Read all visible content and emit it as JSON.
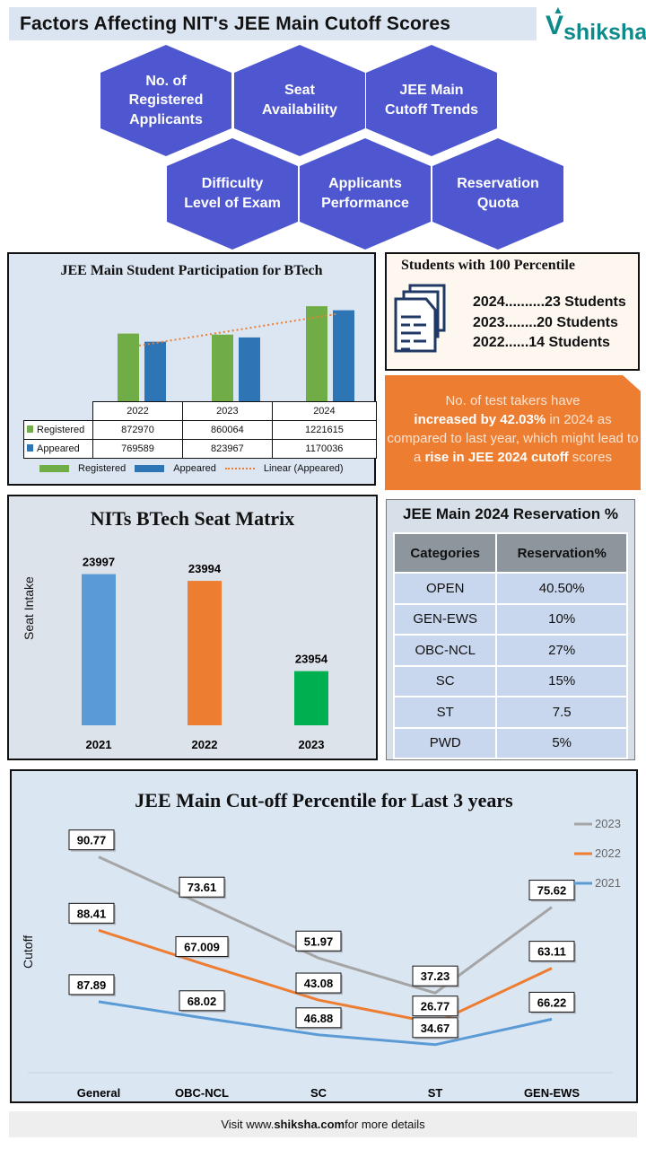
{
  "header": {
    "title": "Factors Affecting NIT's JEE Main Cutoff Scores",
    "logo": "shiksha",
    "logo_color": "#0e8a8a"
  },
  "factors": [
    "No. of Registered Applicants",
    "Seat Availability",
    "JEE Main Cutoff Trends",
    "Difficulty Level of Exam",
    "Applicants Performance",
    "Reservation Quota"
  ],
  "percentile_box": {
    "title": "Students with 100 Percentile",
    "icon": "document-stack-icon",
    "lines": [
      "2024..........23 Students",
      "2023........20 Students",
      "2022......14 Students"
    ]
  },
  "callout": {
    "pre": "No. of test takers  have",
    "bold1": "increased  by 42.03%",
    "mid": " in 2024 as  compared to last year,  which might lead to a ",
    "bold2": "rise in JEE  2024 cutoff",
    "post": " scores"
  },
  "reservation": {
    "title": "JEE  Main 2024 Reservation  %",
    "headers": [
      "Categories",
      "Reservation%"
    ],
    "rows": [
      [
        "OPEN",
        "40.50%"
      ],
      [
        "GEN-EWS",
        "10%"
      ],
      [
        "OBC-NCL",
        "27%"
      ],
      [
        "SC",
        "15%"
      ],
      [
        "ST",
        "7.5"
      ],
      [
        "PWD",
        "5%"
      ]
    ]
  },
  "footer": {
    "pre": "Visit www.",
    "bold": "shiksha.com",
    "post": " for more details"
  },
  "chart_data": [
    {
      "type": "bar",
      "title": "JEE Main Student Participation for BTech",
      "categories": [
        "2022",
        "2023",
        "2024"
      ],
      "series": [
        {
          "name": "Registered",
          "values": [
            872970,
            860064,
            1221615
          ],
          "color": "#70ad47"
        },
        {
          "name": "Appeared",
          "values": [
            769589,
            823967,
            1170036
          ],
          "color": "#2e75b6"
        }
      ],
      "trendline": {
        "name": "Linear (Appeared)",
        "color": "#ed7d31",
        "style": "dotted"
      },
      "ylim": [
        0,
        1600000
      ],
      "legend": "bottom",
      "data_table": true
    },
    {
      "type": "bar",
      "title": "NITs BTech Seat Matrix",
      "ylabel": "Seat Intake",
      "categories": [
        "2021",
        "2022",
        "2023"
      ],
      "values": [
        23997,
        23994,
        23954
      ],
      "colors": [
        "#5b9bd5",
        "#ed7d31",
        "#00b050"
      ],
      "ylim": [
        23930,
        24000
      ]
    },
    {
      "type": "line",
      "stacked": true,
      "title": "JEE Main Cut-off Percentile for Last 3 years",
      "ylabel": "Cutoff",
      "categories": [
        "General",
        "OBC-NCL",
        "SC",
        "ST",
        "GEN-EWS"
      ],
      "series": [
        {
          "name": "2021",
          "values": [
            87.89,
            68.02,
            46.88,
            34.67,
            66.22
          ],
          "color": "#5b9bd5"
        },
        {
          "name": "2022",
          "values": [
            88.41,
            67.009,
            43.08,
            26.77,
            63.11
          ],
          "color": "#ed7d31"
        },
        {
          "name": "2023",
          "values": [
            90.77,
            73.61,
            51.97,
            37.23,
            75.62
          ],
          "color": "#a5a5a5"
        }
      ],
      "legend": "right",
      "legend_order": [
        "2023",
        "2022",
        "2021"
      ],
      "ylim": [
        0,
        300
      ]
    }
  ]
}
